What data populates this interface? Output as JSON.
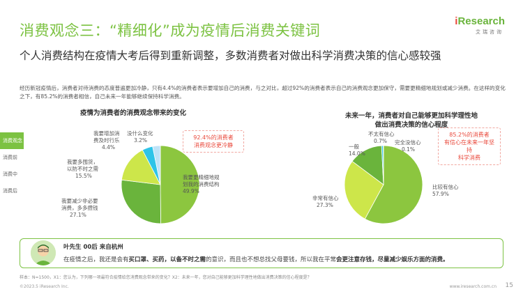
{
  "header": {
    "title": "消费观念三：“精细化”成为疫情后消费关键词",
    "logo_text_prefix": "i",
    "logo_text_main": "Research",
    "logo_sub": "艾瑞咨询"
  },
  "subtitle": "个人消费结构在疫情大考后得到重新调整，多数消费者对做出科学消费决策的信心感较强",
  "intro": "经历新冠疫情后，消费者对待消费的态度普遍更加冷静，只有4.4%的消费者表示要增加自己的消费，与之对比，超过92%的消费者表示自己的消费观念更加保守，需要更精细地规划或减少消费。在这样的变化之下，有85.2%的消费者相信，自己未来一年能够继续保持科学消费。",
  "side_tabs": [
    "消费观念",
    "消费前",
    "消费中",
    "消费后"
  ],
  "chart_data": [
    {
      "type": "pie",
      "title": "疫情为消费者的消费观念带来的变化",
      "categories": [
        "我要更精细地规划我的消费结构",
        "我要减少非必要消费，多多攒钱",
        "以后不时之需",
        "我要增加消费及时行乐",
        "没什么变化"
      ],
      "labels_display": [
        "我要更精细地规划我的消费结构",
        "我要减少非必要消费，多多攒钱",
        "我要多囤货，以防不时之需",
        "我要增加消费及时行乐",
        "没什么变化"
      ],
      "values": [
        49.9,
        27.1,
        15.5,
        4.4,
        3.2
      ],
      "colors": [
        "#8cc63f",
        "#6ab43c",
        "#cde64a",
        "#2ec4e8",
        "#bfe3f7"
      ],
      "callout": "92.4%的消费者消费观念更冷静"
    },
    {
      "type": "pie",
      "title": "未来一年，消费者对自己能够更加科学理性地做出消费决策的信心程度",
      "categories": [
        "比较有信心",
        "非常有信心",
        "一般",
        "不太有信心",
        "完全没信心"
      ],
      "values": [
        57.9,
        27.3,
        14.0,
        0.7,
        0.1
      ],
      "colors": [
        "#8cc63f",
        "#cde64a",
        "#6ab43c",
        "#2ec4e8",
        "#bfe3f7"
      ],
      "callout": "85.2%的消费者有信心在未来一年坚持科学消费"
    }
  ],
  "chart1": {
    "title": "疫情为消费者的消费观念带来的变化",
    "callout_line1": "92.4%的消费者",
    "callout_line2": "消费观念更冷静",
    "labels": {
      "a": {
        "text1": "我要更精细地规",
        "text2": "划我的消费结构",
        "pct": "49.9%"
      },
      "b": {
        "text1": "我要减少非必要",
        "text2": "消费，多多攒钱",
        "pct": "27.1%"
      },
      "c": {
        "text1": "我要多囤货，",
        "text2": "以防不时之需",
        "pct": "15.5%"
      },
      "d": {
        "text1": "我要增加消",
        "text2": "费及时行乐",
        "pct": "4.4%"
      },
      "e": {
        "text1": "没什么变化",
        "pct": "3.2%"
      }
    }
  },
  "chart2": {
    "title_line1": "未来一年，消费者对自己能够更加科学理性地",
    "title_line2": "做出消费决策的信心程度",
    "callout_line1": "85.2%的消费者",
    "callout_line2": "有信心在未来一年坚持",
    "callout_line3": "科学消费",
    "labels": {
      "a": {
        "text": "比较有信心",
        "pct": "57.9%"
      },
      "b": {
        "text": "非常有信心",
        "pct": "27.3%"
      },
      "c": {
        "text": "一般",
        "pct": "14.0%"
      },
      "d": {
        "text": "不太有信心",
        "pct": "0.7%"
      },
      "e": {
        "text": "完全没信心",
        "pct": "0.1%"
      }
    }
  },
  "quote": {
    "name": "叶先生 00后 来自杭州",
    "text_pre": "在疫情之后，我还是会有",
    "text_bold1": "买口罩、买药，以备不时之需",
    "text_mid": "的意识，而且也不想总找父母要钱，所以我在平常",
    "text_bold2": "会更注意存钱，尽量减少娱乐方面的消费。"
  },
  "footer": {
    "footnote": "样本：N=1500，X1：您认为，下列哪一项最符合疫情给您消费观念带来的变化？X2：未来一年，您对自己能够更加科学理性地做出消费决策的信心程度是？",
    "copyright": "©2023.5 iResearch Inc.",
    "website": "www.iresearch.com.cn",
    "page": "15"
  }
}
